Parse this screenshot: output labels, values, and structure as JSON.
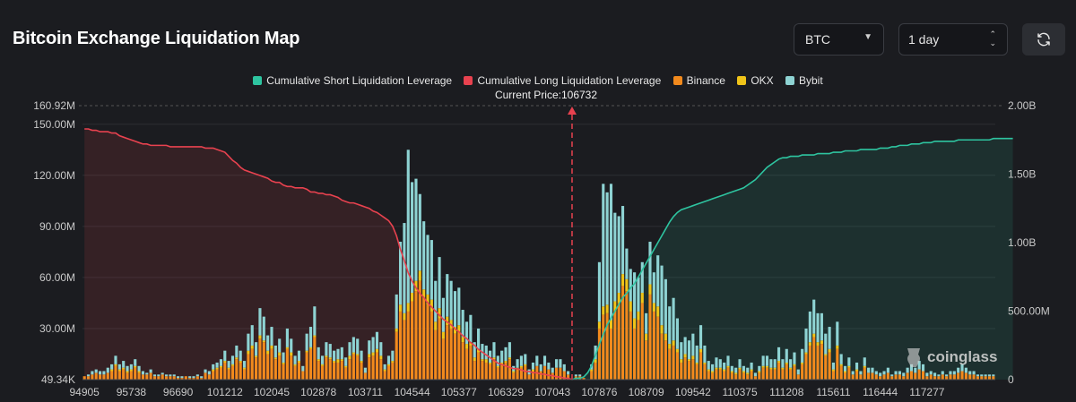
{
  "header": {
    "title": "Bitcoin Exchange Liquidation Map",
    "coin_select": "BTC",
    "range_select": "1 day",
    "refresh_icon": "refresh-icon"
  },
  "legend": [
    {
      "label": "Cumulative Short Liquidation Leverage",
      "color": "#2ec4a0"
    },
    {
      "label": "Cumulative Long Liquidation Leverage",
      "color": "#e8424f"
    },
    {
      "label": "Binance",
      "color": "#f28a1d"
    },
    {
      "label": "OKX",
      "color": "#f0c419"
    },
    {
      "label": "Bybit",
      "color": "#8ed3d3"
    }
  ],
  "current_price_label": "Current Price:106732",
  "watermark": "coinglass",
  "chart_data": {
    "type": "bar",
    "title": "Bitcoin Exchange Liquidation Map",
    "current_price": 106732,
    "current_price_index": 125,
    "y_left": {
      "min": 0.04934,
      "max": 160.92,
      "unit": "M",
      "ticks": [
        0.04934,
        30,
        60,
        90,
        120,
        150,
        160.92
      ],
      "tick_labels": [
        "49.34K",
        "30.00M",
        "60.00M",
        "90.00M",
        "120.00M",
        "150.00M",
        "160.92M"
      ]
    },
    "y_right": {
      "min": 0,
      "max": 2.0,
      "unit": "B",
      "ticks": [
        0,
        0.5,
        1.0,
        1.5,
        2.0
      ],
      "tick_labels": [
        "0",
        "500.00M",
        "1.00B",
        "1.50B",
        "2.00B"
      ]
    },
    "x_tick_labels": [
      "94905",
      "95738",
      "96690",
      "101212",
      "102045",
      "102878",
      "103711",
      "104544",
      "105377",
      "106329",
      "107043",
      "107876",
      "108709",
      "109542",
      "110375",
      "111208",
      "115611",
      "116444",
      "117277"
    ],
    "x_tick_indices": [
      0,
      12,
      24,
      36,
      48,
      60,
      72,
      84,
      96,
      108,
      120,
      132,
      144,
      156,
      168,
      180,
      192,
      204,
      216
    ],
    "series": [
      {
        "name": "Binance",
        "stack": [
          2,
          2,
          3,
          4,
          3,
          3,
          4,
          5,
          8,
          5,
          6,
          4,
          5,
          7,
          4,
          3,
          3,
          4,
          2,
          2,
          3,
          2,
          2,
          2,
          1,
          1,
          2,
          1,
          1,
          2,
          1,
          4,
          3,
          5,
          6,
          7,
          10,
          6,
          8,
          12,
          10,
          6,
          15,
          18,
          13,
          24,
          22,
          15,
          18,
          12,
          14,
          9,
          18,
          14,
          8,
          10,
          5,
          16,
          18,
          25,
          11,
          8,
          13,
          12,
          10,
          10,
          11,
          7,
          12,
          15,
          14,
          10,
          4,
          13,
          14,
          16,
          12,
          5,
          8,
          10,
          28,
          40,
          35,
          40,
          46,
          52,
          58,
          48,
          44,
          40,
          29,
          36,
          24,
          32,
          30,
          27,
          28,
          22,
          18,
          20,
          11,
          16,
          11,
          10,
          9,
          12,
          7,
          9,
          10,
          12,
          4,
          6,
          7,
          8,
          3,
          5,
          8,
          5,
          8,
          6,
          4,
          7,
          7,
          5,
          3,
          0,
          2,
          2,
          1,
          0,
          5,
          10,
          30,
          38,
          39,
          30,
          40,
          45,
          55,
          52,
          40,
          30,
          35,
          45,
          23,
          50,
          40,
          37,
          27,
          23,
          18,
          20,
          16,
          10,
          13,
          11,
          12,
          9,
          16,
          9,
          5,
          4,
          6,
          6,
          5,
          7,
          4,
          3,
          6,
          4,
          3,
          5,
          2,
          4,
          7,
          7,
          6,
          6,
          10,
          6,
          9,
          6,
          8,
          3,
          9,
          15,
          20,
          25,
          20,
          21,
          14,
          16,
          5,
          18,
          8,
          4,
          7,
          3,
          5,
          3,
          7,
          4,
          4,
          3,
          2,
          3,
          4,
          2,
          3,
          3,
          2,
          4,
          5,
          4,
          6,
          5,
          2,
          3,
          2,
          2,
          3,
          2,
          3,
          3,
          4,
          5,
          4,
          3,
          3,
          2,
          2,
          2,
          2,
          2
        ]
      },
      {
        "name": "OKX",
        "stack": [
          0,
          0,
          0,
          0,
          0,
          0,
          0,
          1,
          1,
          1,
          1,
          1,
          1,
          1,
          1,
          0,
          0,
          0,
          0,
          0,
          0,
          0,
          0,
          0,
          0,
          0,
          0,
          0,
          0,
          0,
          0,
          0,
          0,
          1,
          1,
          1,
          1,
          1,
          1,
          1,
          1,
          1,
          2,
          2,
          1,
          2,
          1,
          2,
          2,
          1,
          2,
          1,
          1,
          2,
          1,
          1,
          0,
          1,
          1,
          1,
          1,
          1,
          1,
          1,
          1,
          2,
          1,
          1,
          2,
          1,
          1,
          1,
          0,
          2,
          2,
          2,
          2,
          1,
          1,
          1,
          2,
          4,
          4,
          5,
          5,
          6,
          6,
          5,
          6,
          7,
          5,
          6,
          4,
          5,
          5,
          4,
          4,
          3,
          3,
          2,
          2,
          2,
          1,
          2,
          1,
          1,
          1,
          1,
          1,
          1,
          1,
          1,
          1,
          1,
          0,
          1,
          0,
          0,
          0,
          0,
          0,
          0,
          0,
          0,
          0,
          0,
          0,
          0,
          0,
          0,
          1,
          2,
          4,
          5,
          5,
          5,
          6,
          6,
          7,
          7,
          6,
          6,
          5,
          6,
          4,
          6,
          5,
          6,
          5,
          4,
          3,
          3,
          2,
          2,
          2,
          1,
          2,
          1,
          2,
          1,
          1,
          1,
          1,
          1,
          1,
          1,
          1,
          1,
          1,
          1,
          1,
          1,
          0,
          1,
          1,
          1,
          1,
          1,
          1,
          1,
          1,
          1,
          1,
          0,
          1,
          1,
          2,
          2,
          2,
          2,
          1,
          2,
          1,
          2,
          1,
          1,
          1,
          0,
          1,
          0,
          1,
          0,
          0,
          0,
          0,
          0,
          0,
          0,
          0,
          0,
          0,
          0,
          0,
          0,
          0,
          0,
          0,
          0,
          0,
          0,
          0,
          0,
          0,
          0,
          0,
          0,
          0,
          0,
          0,
          0,
          0,
          0,
          0,
          0
        ]
      },
      {
        "name": "Bybit",
        "stack": [
          0,
          1,
          2,
          2,
          2,
          2,
          3,
          3,
          5,
          3,
          4,
          3,
          3,
          4,
          3,
          2,
          1,
          2,
          1,
          1,
          1,
          1,
          1,
          1,
          1,
          1,
          0,
          1,
          1,
          1,
          1,
          2,
          2,
          3,
          3,
          4,
          6,
          4,
          5,
          7,
          6,
          4,
          10,
          12,
          8,
          16,
          14,
          9,
          11,
          7,
          8,
          6,
          11,
          8,
          5,
          6,
          3,
          10,
          12,
          17,
          7,
          5,
          8,
          8,
          6,
          6,
          7,
          5,
          8,
          9,
          9,
          6,
          3,
          8,
          9,
          10,
          8,
          3,
          5,
          6,
          20,
          37,
          53,
          90,
          65,
          60,
          45,
          40,
          35,
          35,
          24,
          30,
          20,
          25,
          23,
          21,
          22,
          16,
          13,
          16,
          9,
          12,
          9,
          8,
          7,
          9,
          6,
          7,
          8,
          9,
          3,
          5,
          6,
          6,
          3,
          4,
          6,
          4,
          6,
          4,
          3,
          5,
          5,
          4,
          2,
          0,
          1,
          1,
          0,
          0,
          3,
          8,
          35,
          72,
          66,
          80,
          52,
          45,
          40,
          18,
          19,
          27,
          20,
          18,
          12,
          25,
          18,
          30,
          35,
          32,
          22,
          25,
          18,
          10,
          10,
          11,
          13,
          10,
          14,
          10,
          5,
          4,
          6,
          5,
          4,
          6,
          3,
          3,
          5,
          3,
          3,
          4,
          2,
          3,
          6,
          6,
          5,
          5,
          8,
          5,
          8,
          5,
          7,
          3,
          8,
          14,
          18,
          20,
          17,
          16,
          12,
          13,
          4,
          14,
          6,
          3,
          5,
          2,
          4,
          2,
          5,
          3,
          3,
          2,
          2,
          2,
          3,
          1,
          2,
          2,
          2,
          3,
          4,
          3,
          5,
          4,
          2,
          2,
          2,
          1,
          2,
          1,
          2,
          2,
          3,
          4,
          3,
          2,
          2,
          1,
          1,
          1,
          1,
          1
        ]
      },
      {
        "name": "Cumulative Long Liquidation Leverage",
        "axis": "right_billions",
        "values": [
          1.83,
          1.83,
          1.82,
          1.82,
          1.81,
          1.81,
          1.81,
          1.8,
          1.8,
          1.78,
          1.77,
          1.76,
          1.75,
          1.74,
          1.73,
          1.72,
          1.72,
          1.71,
          1.71,
          1.71,
          1.71,
          1.71,
          1.7,
          1.7,
          1.7,
          1.7,
          1.7,
          1.7,
          1.7,
          1.7,
          1.7,
          1.69,
          1.69,
          1.69,
          1.68,
          1.67,
          1.66,
          1.63,
          1.6,
          1.58,
          1.55,
          1.53,
          1.52,
          1.51,
          1.5,
          1.49,
          1.48,
          1.47,
          1.45,
          1.44,
          1.44,
          1.42,
          1.41,
          1.41,
          1.4,
          1.4,
          1.4,
          1.39,
          1.37,
          1.37,
          1.36,
          1.36,
          1.35,
          1.35,
          1.34,
          1.33,
          1.31,
          1.3,
          1.29,
          1.29,
          1.28,
          1.27,
          1.26,
          1.25,
          1.23,
          1.22,
          1.2,
          1.18,
          1.16,
          1.12,
          1.05,
          0.95,
          0.87,
          0.78,
          0.72,
          0.67,
          0.63,
          0.6,
          0.56,
          0.53,
          0.5,
          0.47,
          0.44,
          0.42,
          0.4,
          0.37,
          0.35,
          0.32,
          0.3,
          0.27,
          0.25,
          0.22,
          0.2,
          0.18,
          0.16,
          0.14,
          0.12,
          0.11,
          0.1,
          0.09,
          0.08,
          0.08,
          0.07,
          0.06,
          0.06,
          0.05,
          0.05,
          0.04,
          0.04,
          0.03,
          0.03,
          0.02,
          0.02,
          0.01,
          0.01,
          0.0
        ]
      },
      {
        "name": "Cumulative Short Liquidation Leverage",
        "axis": "right_billions",
        "start_index": 125,
        "values": [
          0.0,
          0.01,
          0.01,
          0.02,
          0.05,
          0.1,
          0.18,
          0.26,
          0.33,
          0.4,
          0.45,
          0.5,
          0.55,
          0.6,
          0.63,
          0.67,
          0.7,
          0.75,
          0.8,
          0.85,
          0.9,
          0.95,
          1.0,
          1.05,
          1.1,
          1.15,
          1.19,
          1.22,
          1.24,
          1.25,
          1.26,
          1.27,
          1.28,
          1.29,
          1.3,
          1.31,
          1.32,
          1.33,
          1.34,
          1.35,
          1.36,
          1.37,
          1.38,
          1.39,
          1.4,
          1.42,
          1.44,
          1.46,
          1.49,
          1.52,
          1.55,
          1.57,
          1.59,
          1.61,
          1.62,
          1.62,
          1.63,
          1.63,
          1.63,
          1.64,
          1.64,
          1.64,
          1.64,
          1.65,
          1.65,
          1.65,
          1.65,
          1.66,
          1.66,
          1.66,
          1.67,
          1.67,
          1.67,
          1.67,
          1.68,
          1.68,
          1.68,
          1.68,
          1.68,
          1.69,
          1.69,
          1.69,
          1.7,
          1.7,
          1.71,
          1.71,
          1.71,
          1.72,
          1.72,
          1.72,
          1.73,
          1.73,
          1.73,
          1.74,
          1.74,
          1.74,
          1.74,
          1.74,
          1.74,
          1.75,
          1.75,
          1.75,
          1.75,
          1.75,
          1.75,
          1.75,
          1.75,
          1.75,
          1.76,
          1.76,
          1.76,
          1.76,
          1.76,
          1.76
        ]
      }
    ]
  }
}
